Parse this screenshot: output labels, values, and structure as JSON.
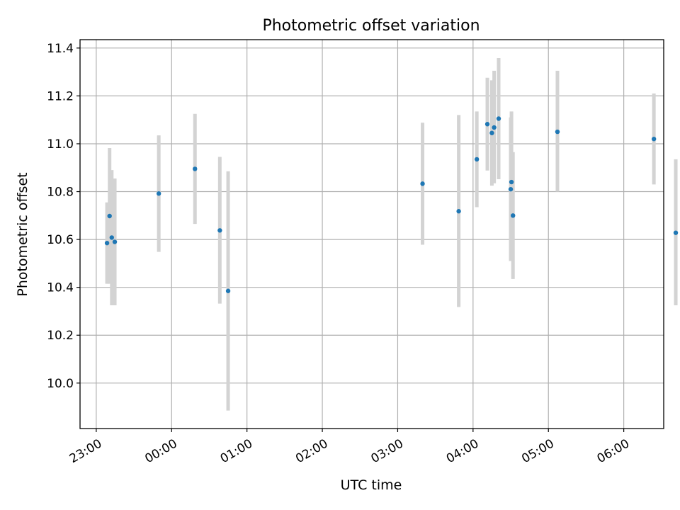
{
  "chart_data": {
    "type": "scatter",
    "title": "Photometric offset variation",
    "xlabel": "UTC time",
    "ylabel": "Photometric offset",
    "grid": true,
    "xlim": [
      -1.215,
      6.53
    ],
    "ylim": [
      9.81,
      11.435
    ],
    "x_ticks": [
      {
        "value": -1.0,
        "label": "23:00"
      },
      {
        "value": 0.0,
        "label": "00:00"
      },
      {
        "value": 1.0,
        "label": "01:00"
      },
      {
        "value": 2.0,
        "label": "02:00"
      },
      {
        "value": 3.0,
        "label": "03:00"
      },
      {
        "value": 4.0,
        "label": "04:00"
      },
      {
        "value": 5.0,
        "label": "05:00"
      },
      {
        "value": 6.0,
        "label": "06:00"
      }
    ],
    "y_ticks": [
      {
        "value": 10.0,
        "label": "10.0"
      },
      {
        "value": 10.2,
        "label": "10.2"
      },
      {
        "value": 10.4,
        "label": "10.4"
      },
      {
        "value": 10.6,
        "label": "10.6"
      },
      {
        "value": 10.8,
        "label": "10.8"
      },
      {
        "value": 11.0,
        "label": "11.0"
      },
      {
        "value": 11.2,
        "label": "11.2"
      },
      {
        "value": 11.4,
        "label": "11.4"
      }
    ],
    "series": [
      {
        "name": "offset",
        "marker_color": "#1f77b4",
        "errorbar_color": "#d3d3d3",
        "points": [
          {
            "x": -0.857,
            "y": 10.585,
            "lo": 10.415,
            "hi": 10.755
          },
          {
            "x": -0.823,
            "y": 10.698,
            "lo": 10.415,
            "hi": 10.982
          },
          {
            "x": -0.794,
            "y": 10.608,
            "lo": 10.325,
            "hi": 10.89
          },
          {
            "x": -0.754,
            "y": 10.59,
            "lo": 10.325,
            "hi": 10.855
          },
          {
            "x": -0.17,
            "y": 10.792,
            "lo": 10.548,
            "hi": 11.035
          },
          {
            "x": 0.31,
            "y": 10.895,
            "lo": 10.665,
            "hi": 11.125
          },
          {
            "x": 0.64,
            "y": 10.638,
            "lo": 10.332,
            "hi": 10.945
          },
          {
            "x": 0.75,
            "y": 10.385,
            "lo": 9.885,
            "hi": 10.885
          },
          {
            "x": 3.33,
            "y": 10.833,
            "lo": 10.578,
            "hi": 11.088
          },
          {
            "x": 3.81,
            "y": 10.718,
            "lo": 10.318,
            "hi": 11.12
          },
          {
            "x": 4.05,
            "y": 10.935,
            "lo": 10.735,
            "hi": 11.135
          },
          {
            "x": 4.19,
            "y": 11.082,
            "lo": 10.888,
            "hi": 11.276
          },
          {
            "x": 4.25,
            "y": 11.045,
            "lo": 10.825,
            "hi": 11.265
          },
          {
            "x": 4.28,
            "y": 11.068,
            "lo": 10.835,
            "hi": 11.305
          },
          {
            "x": 4.34,
            "y": 11.105,
            "lo": 10.852,
            "hi": 11.358
          },
          {
            "x": 4.51,
            "y": 10.84,
            "lo": 10.545,
            "hi": 11.135
          },
          {
            "x": 4.5,
            "y": 10.81,
            "lo": 10.51,
            "hi": 11.11
          },
          {
            "x": 4.53,
            "y": 10.7,
            "lo": 10.435,
            "hi": 10.965
          },
          {
            "x": 5.12,
            "y": 11.05,
            "lo": 10.8,
            "hi": 11.305
          },
          {
            "x": 6.4,
            "y": 11.02,
            "lo": 10.83,
            "hi": 11.21
          },
          {
            "x": 6.69,
            "y": 10.628,
            "lo": 10.325,
            "hi": 10.935
          }
        ]
      }
    ]
  }
}
